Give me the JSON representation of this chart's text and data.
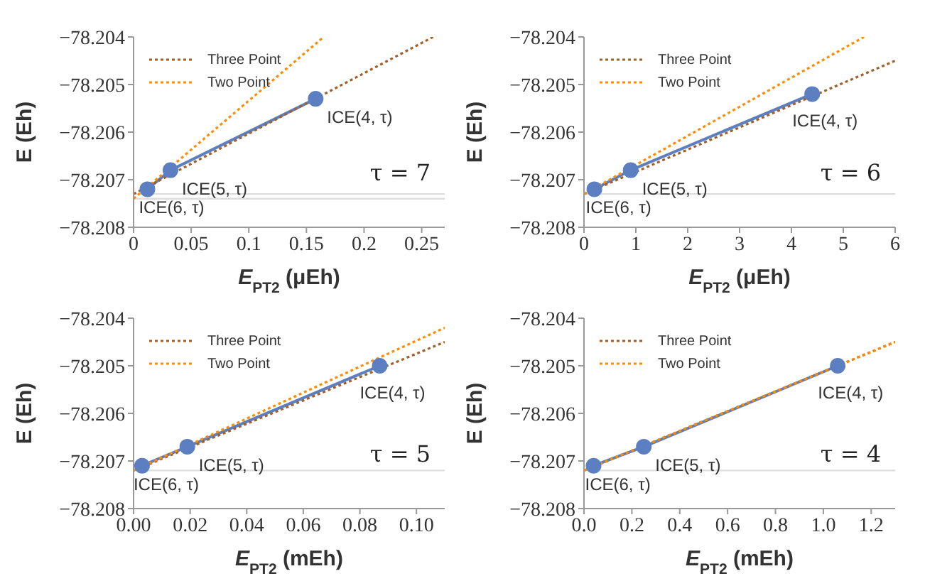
{
  "chart_data": [
    {
      "type": "line",
      "xlabel": "E$_{PT2}$ (μEh)",
      "ylabel": "E (Eh)",
      "xlim": [
        0,
        0.27
      ],
      "xticks": [
        0,
        0.05,
        0.1,
        0.15,
        0.2,
        0.25
      ],
      "ylim": [
        -78.208,
        -78.204
      ],
      "yticks": [
        {
          "value": -78.208,
          "label": "−78.208"
        },
        {
          "value": -78.207,
          "label": "−78.207"
        },
        {
          "value": -78.206,
          "label": "−78.206"
        },
        {
          "value": -78.205,
          "label": "−78.205"
        },
        {
          "value": -78.204,
          "label": "−78.204"
        }
      ],
      "legend": "top left",
      "series": [
        {
          "color": "#5b7fc0",
          "x": [
            0.012,
            0.032,
            0.158
          ],
          "values": [
            -78.2072,
            -78.2068,
            -78.2053
          ],
          "marker": "circle",
          "line_style": "solid"
        },
        {
          "name": "Three Point",
          "color": "#a0602a",
          "x": [
            0,
            0.26
          ],
          "values": [
            -78.2073,
            -78.204
          ],
          "marker": "none",
          "line_style": "dotted"
        },
        {
          "name": "Two Point",
          "color": "#ff8c00",
          "x": [
            0,
            0.165
          ],
          "values": [
            -78.2074,
            -78.204
          ],
          "marker": "none",
          "line_style": "dotted"
        }
      ],
      "ref_lines": [
        {
          "axis": "y",
          "value": -78.2073,
          "color": "#dddddd"
        },
        {
          "axis": "y",
          "value": -78.2074,
          "color": "#dddddd"
        }
      ],
      "annotations": [
        {
          "text": "ICE(4, τ)",
          "x": 0.158,
          "y": -78.2053
        },
        {
          "text": "ICE(5, τ)",
          "x": 0.032,
          "y": -78.2068
        },
        {
          "text": "ICE(6, τ)",
          "x": 0.012,
          "y": -78.2072
        },
        "τ = 7"
      ]
    },
    {
      "type": "line",
      "xlabel": "E$_{PT2}$ (μEh)",
      "ylabel": "E (Eh)",
      "xlim": [
        0,
        6
      ],
      "xticks": [
        0,
        1,
        2,
        3,
        4,
        5,
        6
      ],
      "ylim": [
        -78.208,
        -78.204
      ],
      "yticks": [
        {
          "value": -78.208,
          "label": "−78.208"
        },
        {
          "value": -78.207,
          "label": "−78.207"
        },
        {
          "value": -78.206,
          "label": "−78.206"
        },
        {
          "value": -78.205,
          "label": "−78.205"
        },
        {
          "value": -78.204,
          "label": "−78.204"
        }
      ],
      "legend": "top left",
      "series": [
        {
          "color": "#5b7fc0",
          "x": [
            0.2,
            0.9,
            4.4
          ],
          "values": [
            -78.2072,
            -78.2068,
            -78.2052
          ],
          "marker": "circle",
          "line_style": "solid"
        },
        {
          "name": "Three Point",
          "color": "#a0602a",
          "x": [
            0,
            6
          ],
          "values": [
            -78.2073,
            -78.2045
          ],
          "marker": "none",
          "line_style": "dotted"
        },
        {
          "name": "Two Point",
          "color": "#ff8c00",
          "x": [
            0,
            5.4
          ],
          "values": [
            -78.2073,
            -78.204
          ],
          "marker": "none",
          "line_style": "dotted"
        }
      ],
      "ref_lines": [
        {
          "axis": "y",
          "value": -78.2073,
          "color": "#dddddd"
        }
      ],
      "annotations": [
        {
          "text": "ICE(4, τ)",
          "x": 4.4,
          "y": -78.2052
        },
        {
          "text": "ICE(5, τ)",
          "x": 0.9,
          "y": -78.2068
        },
        {
          "text": "ICE(6, τ)",
          "x": 0.2,
          "y": -78.2072
        },
        "τ = 6"
      ]
    },
    {
      "type": "line",
      "xlabel": "E$_{PT2}$ (mEh)",
      "ylabel": "E (Eh)",
      "xlim": [
        0,
        0.11
      ],
      "xticks": [
        {
          "value": 0,
          "label": "0.00"
        },
        {
          "value": 0.02,
          "label": "0.02"
        },
        {
          "value": 0.04,
          "label": "0.04"
        },
        {
          "value": 0.06,
          "label": "0.06"
        },
        {
          "value": 0.08,
          "label": "0.08"
        },
        {
          "value": 0.1,
          "label": "0.10"
        }
      ],
      "ylim": [
        -78.208,
        -78.204
      ],
      "yticks": [
        {
          "value": -78.208,
          "label": "−78.208"
        },
        {
          "value": -78.207,
          "label": "−78.207"
        },
        {
          "value": -78.206,
          "label": "−78.206"
        },
        {
          "value": -78.205,
          "label": "−78.205"
        },
        {
          "value": -78.204,
          "label": "−78.204"
        }
      ],
      "legend": "top left",
      "series": [
        {
          "color": "#5b7fc0",
          "x": [
            0.003,
            0.019,
            0.087
          ],
          "values": [
            -78.2071,
            -78.2067,
            -78.205
          ],
          "marker": "circle",
          "line_style": "solid"
        },
        {
          "name": "Three Point",
          "color": "#a0602a",
          "x": [
            0,
            0.11
          ],
          "values": [
            -78.2072,
            -78.2045
          ],
          "marker": "none",
          "line_style": "dotted"
        },
        {
          "name": "Two Point",
          "color": "#ff8c00",
          "x": [
            0,
            0.11
          ],
          "values": [
            -78.2072,
            -78.2042
          ],
          "marker": "none",
          "line_style": "dotted"
        }
      ],
      "ref_lines": [
        {
          "axis": "y",
          "value": -78.2072,
          "color": "#dddddd"
        }
      ],
      "annotations": [
        {
          "text": "ICE(4, τ)",
          "x": 0.087,
          "y": -78.205
        },
        {
          "text": "ICE(5, τ)",
          "x": 0.019,
          "y": -78.2067
        },
        {
          "text": "ICE(6, τ)",
          "x": 0.003,
          "y": -78.2071
        },
        "τ = 5"
      ]
    },
    {
      "type": "line",
      "xlabel": "E$_{PT2}$ (mEh)",
      "ylabel": "E (Eh)",
      "xlim": [
        0,
        1.3
      ],
      "xticks": [
        {
          "value": 0,
          "label": "0.0"
        },
        0.2,
        0.4,
        0.6,
        0.8,
        {
          "value": 1,
          "label": "1.0"
        },
        1.2
      ],
      "ylim": [
        -78.208,
        -78.204
      ],
      "yticks": [
        {
          "value": -78.208,
          "label": "−78.208"
        },
        {
          "value": -78.207,
          "label": "−78.207"
        },
        {
          "value": -78.206,
          "label": "−78.206"
        },
        {
          "value": -78.205,
          "label": "−78.205"
        },
        {
          "value": -78.204,
          "label": "−78.204"
        }
      ],
      "legend": "top left",
      "series": [
        {
          "color": "#5b7fc0",
          "x": [
            0.04,
            0.25,
            1.06
          ],
          "values": [
            -78.2071,
            -78.2067,
            -78.205
          ],
          "marker": "circle",
          "line_style": "solid"
        },
        {
          "name": "Three Point",
          "color": "#a0602a",
          "x": [
            0,
            1.3
          ],
          "values": [
            -78.2072,
            -78.2045
          ],
          "marker": "none",
          "line_style": "dotted"
        },
        {
          "name": "Two Point",
          "color": "#ff8c00",
          "x": [
            0,
            1.3
          ],
          "values": [
            -78.2072,
            -78.2045
          ],
          "marker": "none",
          "line_style": "dotted"
        }
      ],
      "ref_lines": [
        {
          "axis": "y",
          "value": -78.2072,
          "color": "#dddddd"
        }
      ],
      "annotations": [
        {
          "text": "ICE(4, τ)",
          "x": 1.06,
          "y": -78.205
        },
        {
          "text": "ICE(5, τ)",
          "x": 0.25,
          "y": -78.2067
        },
        {
          "text": "ICE(6, τ)",
          "x": 0.04,
          "y": -78.2071
        },
        "τ = 4"
      ]
    }
  ]
}
